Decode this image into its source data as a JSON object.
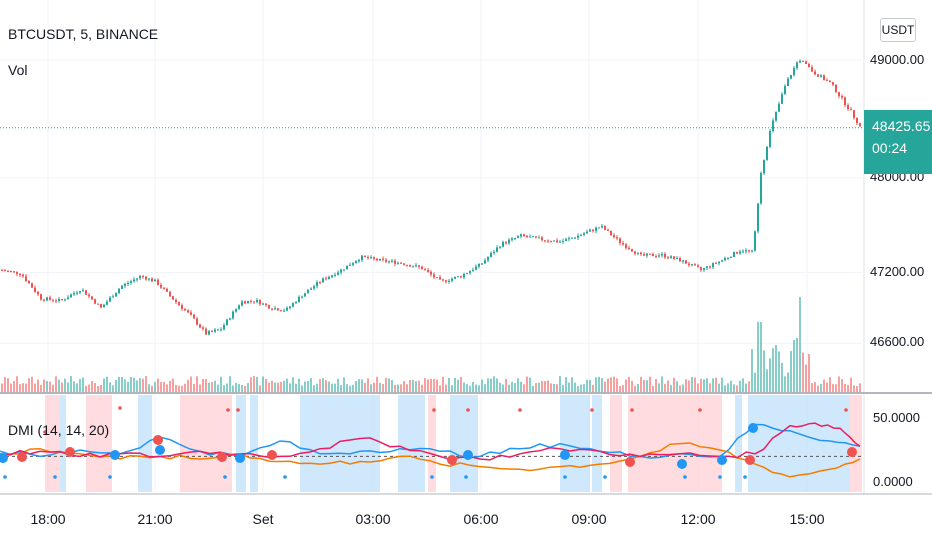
{
  "legend": {
    "symbol": "BTCUSDT, 5, BINANCE",
    "volume": "Vol",
    "indicator": "DMI (14, 14, 20)"
  },
  "currency_button": "USDT",
  "last_price": {
    "value": "48425.65",
    "timer": "00:24"
  },
  "price_axis": {
    "labels": [
      "49000.00",
      "48000.00",
      "47200.00",
      "46600.00"
    ]
  },
  "dmi_axis": {
    "labels": [
      "50.0000",
      "0.0000"
    ]
  },
  "time_axis": {
    "labels": [
      "18:00",
      "21:00",
      "Set",
      "03:00",
      "06:00",
      "09:00",
      "12:00",
      "15:00"
    ]
  },
  "colors": {
    "up": "#26a69a",
    "down": "#ef5350",
    "plus_di": "#2196f3",
    "minus_di": "#f57c00",
    "adx": "#e91e63",
    "bg_bull": "#bbdefb",
    "bg_bear": "#ffcdd2"
  },
  "chart_data": {
    "type": "candlestick",
    "price_ticks": [
      49000,
      48000,
      47200,
      46600
    ],
    "last_price": 48425.65,
    "close_path": [
      [
        0,
        47220
      ],
      [
        20,
        47190
      ],
      [
        40,
        46980
      ],
      [
        60,
        46960
      ],
      [
        80,
        47060
      ],
      [
        100,
        46900
      ],
      [
        120,
        47080
      ],
      [
        140,
        47170
      ],
      [
        155,
        47120
      ],
      [
        170,
        46990
      ],
      [
        190,
        46830
      ],
      [
        205,
        46680
      ],
      [
        220,
        46720
      ],
      [
        240,
        46950
      ],
      [
        255,
        46960
      ],
      [
        270,
        46900
      ],
      [
        285,
        46880
      ],
      [
        300,
        47000
      ],
      [
        320,
        47130
      ],
      [
        340,
        47220
      ],
      [
        360,
        47330
      ],
      [
        380,
        47300
      ],
      [
        400,
        47280
      ],
      [
        420,
        47240
      ],
      [
        440,
        47120
      ],
      [
        460,
        47170
      ],
      [
        480,
        47270
      ],
      [
        500,
        47440
      ],
      [
        520,
        47510
      ],
      [
        540,
        47480
      ],
      [
        560,
        47460
      ],
      [
        580,
        47520
      ],
      [
        600,
        47590
      ],
      [
        620,
        47450
      ],
      [
        640,
        47340
      ],
      [
        660,
        47350
      ],
      [
        680,
        47300
      ],
      [
        700,
        47220
      ],
      [
        720,
        47300
      ],
      [
        740,
        47390
      ],
      [
        752,
        47370
      ],
      [
        760,
        48050
      ],
      [
        770,
        48430
      ],
      [
        785,
        48800
      ],
      [
        798,
        49010
      ],
      [
        812,
        48900
      ],
      [
        830,
        48800
      ],
      [
        850,
        48560
      ],
      [
        860,
        48425
      ]
    ],
    "dmi_ticks": [
      50,
      0
    ],
    "series": [
      {
        "name": "+DI",
        "values": [
          [
            0,
            24
          ],
          [
            40,
            20
          ],
          [
            80,
            25
          ],
          [
            120,
            22
          ],
          [
            160,
            35
          ],
          [
            200,
            24
          ],
          [
            240,
            20
          ],
          [
            280,
            32
          ],
          [
            320,
            22
          ],
          [
            360,
            24
          ],
          [
            400,
            26
          ],
          [
            440,
            24
          ],
          [
            480,
            20
          ],
          [
            520,
            26
          ],
          [
            560,
            30
          ],
          [
            600,
            24
          ],
          [
            640,
            20
          ],
          [
            680,
            22
          ],
          [
            720,
            20
          ],
          [
            755,
            45
          ],
          [
            790,
            40
          ],
          [
            830,
            32
          ],
          [
            860,
            28
          ]
        ]
      },
      {
        "name": "-DI",
        "values": [
          [
            0,
            20
          ],
          [
            40,
            26
          ],
          [
            80,
            22
          ],
          [
            120,
            18
          ],
          [
            160,
            20
          ],
          [
            200,
            18
          ],
          [
            240,
            22
          ],
          [
            280,
            16
          ],
          [
            320,
            14
          ],
          [
            360,
            16
          ],
          [
            400,
            20
          ],
          [
            440,
            14
          ],
          [
            480,
            12
          ],
          [
            520,
            10
          ],
          [
            560,
            12
          ],
          [
            600,
            14
          ],
          [
            640,
            20
          ],
          [
            680,
            30
          ],
          [
            720,
            25
          ],
          [
            755,
            14
          ],
          [
            790,
            4
          ],
          [
            830,
            10
          ],
          [
            860,
            18
          ]
        ]
      },
      {
        "name": "ADX",
        "values": [
          [
            0,
            22
          ],
          [
            40,
            24
          ],
          [
            80,
            20
          ],
          [
            120,
            22
          ],
          [
            160,
            20
          ],
          [
            200,
            24
          ],
          [
            240,
            22
          ],
          [
            280,
            20
          ],
          [
            320,
            26
          ],
          [
            360,
            34
          ],
          [
            400,
            28
          ],
          [
            440,
            20
          ],
          [
            480,
            18
          ],
          [
            520,
            22
          ],
          [
            560,
            26
          ],
          [
            600,
            24
          ],
          [
            640,
            20
          ],
          [
            680,
            22
          ],
          [
            720,
            20
          ],
          [
            755,
            22
          ],
          [
            790,
            44
          ],
          [
            815,
            46
          ],
          [
            840,
            42
          ],
          [
            860,
            28
          ]
        ]
      }
    ]
  }
}
